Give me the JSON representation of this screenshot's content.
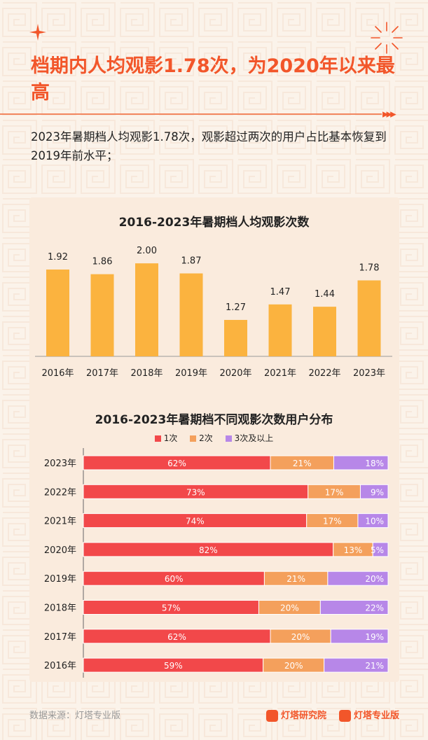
{
  "header": {
    "title": "档期内人均观影1.78次，为2020年以来最高",
    "subtitle": "2023年暑期档人均观影1.78次，观影超过两次的用户占比基本恢复到2019年前水平；",
    "arrows": "▸▸▸"
  },
  "colors": {
    "accent": "#f2562a",
    "bar": "#fbb33f",
    "seg1": "#f2484a",
    "seg2": "#f4a05c",
    "seg3": "#b787e8"
  },
  "chart_data": [
    {
      "type": "bar",
      "title": "2016-2023年暑期档人均观影次数",
      "categories": [
        "2016年",
        "2017年",
        "2018年",
        "2019年",
        "2020年",
        "2021年",
        "2022年",
        "2023年"
      ],
      "values": [
        1.92,
        1.86,
        2.0,
        1.87,
        1.27,
        1.47,
        1.44,
        1.78
      ],
      "value_labels": [
        "1.92",
        "1.86",
        "2.00",
        "1.87",
        "1.27",
        "1.47",
        "1.44",
        "1.78"
      ],
      "ylim": [
        0.8,
        2.2
      ],
      "grid": false
    },
    {
      "type": "bar",
      "orientation": "horizontal",
      "stacked": true,
      "title": "2016-2023年暑期档不同观影次数用户分布",
      "categories": [
        "2023年",
        "2022年",
        "2021年",
        "2020年",
        "2019年",
        "2018年",
        "2017年",
        "2016年"
      ],
      "series": [
        {
          "name": "1次",
          "values": [
            62,
            73,
            74,
            82,
            60,
            57,
            62,
            59
          ],
          "labels": [
            "62%",
            "73%",
            "74%",
            "82%",
            "60%",
            "57%",
            "62%",
            "59%"
          ]
        },
        {
          "name": "2次",
          "values": [
            21,
            17,
            17,
            13,
            21,
            20,
            20,
            20
          ],
          "labels": [
            "21%",
            "17%",
            "17%",
            "13%",
            "21%",
            "20%",
            "20%",
            "20%"
          ]
        },
        {
          "name": "3次及以上",
          "values": [
            18,
            9,
            10,
            5,
            20,
            22,
            19,
            21
          ],
          "labels": [
            "18%",
            "9%",
            "10%",
            "5%",
            "20%",
            "22%",
            "19%",
            "21%"
          ]
        }
      ],
      "legend": "top"
    }
  ],
  "footer": {
    "source": "数据来源：灯塔专业版",
    "logo1": "灯塔研究院",
    "logo2": "灯塔专业版"
  }
}
